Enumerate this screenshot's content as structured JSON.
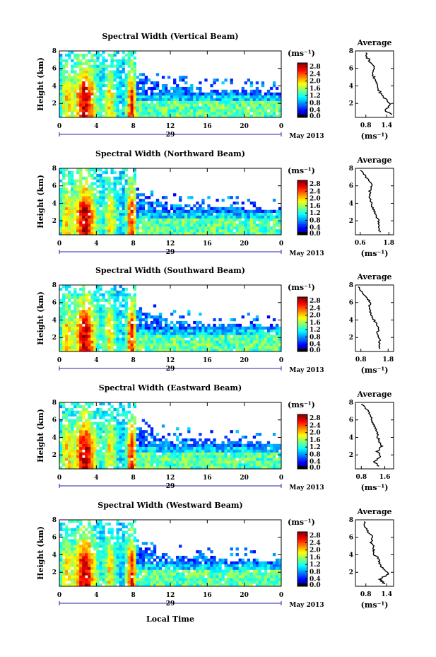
{
  "chart_data": [
    {
      "type": "heatmap",
      "title": "Spectral Width (Vertical Beam)",
      "ylabel": "Height (km)",
      "ylim": [
        0.4,
        8
      ],
      "yticks": [
        "2",
        "4",
        "6",
        "8"
      ],
      "xticks": [
        "0",
        "4",
        "8",
        "12",
        "16",
        "20",
        "0"
      ],
      "xlim": [
        0,
        24
      ],
      "date_day": "29",
      "date_label": "May 2013",
      "colorbar": {
        "label": "(ms⁻¹)",
        "ticks": [
          "0.0",
          "0.4",
          "0.8",
          "1.2",
          "1.6",
          "2.0",
          "2.4",
          "2.8"
        ],
        "range": [
          0,
          3.0
        ]
      },
      "average_profile": {
        "title": "Average",
        "xlabel": "(ms⁻¹)",
        "xticks": [
          "0.8",
          "1.4"
        ],
        "xlim": [
          0.5,
          1.6
        ],
        "height": [
          0.7,
          1.2,
          1.8,
          2.4,
          3.0,
          3.6,
          4.2,
          4.8,
          5.4,
          6.0,
          6.6,
          7.2,
          7.8
        ],
        "width": [
          1.55,
          1.35,
          1.5,
          1.4,
          1.25,
          1.15,
          1.1,
          1.05,
          1.0,
          1.05,
          0.95,
          0.85,
          0.8
        ]
      }
    },
    {
      "type": "heatmap",
      "title": "Spectral Width (Northward Beam)",
      "ylabel": "Height (km)",
      "ylim": [
        0.4,
        8
      ],
      "yticks": [
        "2",
        "4",
        "6",
        "8"
      ],
      "xticks": [
        "0",
        "4",
        "8",
        "12",
        "16",
        "20",
        "0"
      ],
      "xlim": [
        0,
        24
      ],
      "date_day": "29",
      "date_label": "May 2013",
      "colorbar": {
        "label": "(ms⁻¹)",
        "ticks": [
          "0.0",
          "0.4",
          "0.8",
          "1.2",
          "1.6",
          "2.0",
          "2.4",
          "2.8"
        ],
        "range": [
          0,
          3.0
        ]
      },
      "average_profile": {
        "title": "Average",
        "xlabel": "(ms⁻¹)",
        "xticks": [
          "0.6",
          "1.8"
        ],
        "xlim": [
          0.4,
          2.0
        ],
        "height": [
          0.7,
          1.2,
          1.8,
          2.4,
          3.0,
          3.6,
          4.2,
          4.8,
          5.4,
          6.0,
          6.6,
          7.2,
          7.8
        ],
        "width": [
          1.45,
          1.35,
          1.4,
          1.3,
          1.2,
          1.1,
          1.05,
          1.0,
          1.0,
          1.1,
          0.95,
          0.8,
          0.6
        ]
      }
    },
    {
      "type": "heatmap",
      "title": "Spectral Width (Southward Beam)",
      "ylabel": "Height (km)",
      "ylim": [
        0.4,
        8
      ],
      "yticks": [
        "2",
        "4",
        "6",
        "8"
      ],
      "xticks": [
        "0",
        "4",
        "8",
        "12",
        "16",
        "20",
        "0"
      ],
      "xlim": [
        0,
        24
      ],
      "date_day": "29",
      "date_label": "May 2013",
      "colorbar": {
        "label": "(ms⁻¹)",
        "ticks": [
          "0.0",
          "0.4",
          "0.8",
          "1.2",
          "1.6",
          "2.0",
          "2.4",
          "2.8"
        ],
        "range": [
          0,
          3.0
        ]
      },
      "average_profile": {
        "title": "Average",
        "xlabel": "(ms⁻¹)",
        "xticks": [
          "0.8",
          "1.8"
        ],
        "xlim": [
          0.6,
          2.0
        ],
        "height": [
          0.7,
          1.2,
          1.8,
          2.4,
          3.0,
          3.6,
          4.2,
          4.8,
          5.4,
          6.0,
          6.6,
          7.2,
          7.8
        ],
        "width": [
          1.5,
          1.45,
          1.5,
          1.4,
          1.45,
          1.35,
          1.25,
          1.15,
          1.1,
          1.15,
          1.0,
          0.85,
          0.7
        ]
      }
    },
    {
      "type": "heatmap",
      "title": "Spectral Width (Eastward Beam)",
      "ylabel": "Height (km)",
      "ylim": [
        0.4,
        8
      ],
      "yticks": [
        "2",
        "4",
        "6",
        "8"
      ],
      "xticks": [
        "0",
        "4",
        "8",
        "12",
        "16",
        "20",
        "0"
      ],
      "xlim": [
        0,
        24
      ],
      "date_day": "29",
      "date_label": "May 2013",
      "colorbar": {
        "label": "(ms⁻¹)",
        "ticks": [
          "0.0",
          "0.4",
          "0.8",
          "1.2",
          "1.6",
          "2.0",
          "2.4",
          "2.8"
        ],
        "range": [
          0,
          3.0
        ]
      },
      "average_profile": {
        "title": "Average",
        "xlabel": "(ms⁻¹)",
        "xticks": [
          "0.8",
          "1.6"
        ],
        "xlim": [
          0.6,
          1.9
        ],
        "height": [
          0.7,
          1.2,
          1.8,
          2.4,
          3.0,
          3.6,
          4.2,
          4.8,
          5.4,
          6.0,
          6.6,
          7.2,
          7.8
        ],
        "width": [
          1.4,
          1.25,
          1.45,
          1.35,
          1.5,
          1.4,
          1.35,
          1.3,
          1.25,
          1.15,
          1.1,
          1.0,
          0.8
        ]
      }
    },
    {
      "type": "heatmap",
      "title": "Spectral Width (Westward Beam)",
      "ylabel": "Height (km)",
      "ylim": [
        0.4,
        8
      ],
      "yticks": [
        "2",
        "4",
        "6",
        "8"
      ],
      "xticks": [
        "0",
        "4",
        "8",
        "12",
        "16",
        "20",
        "0"
      ],
      "xlim": [
        0,
        24
      ],
      "date_day": "29",
      "date_label": "May 2013",
      "colorbar": {
        "label": "(ms⁻¹)",
        "ticks": [
          "0.0",
          "0.4",
          "0.8",
          "1.2",
          "1.6",
          "2.0",
          "2.4",
          "2.8"
        ],
        "range": [
          0,
          3.0
        ]
      },
      "average_profile": {
        "title": "Average",
        "xlabel": "(ms⁻¹)",
        "xticks": [
          "0.8",
          "1.4"
        ],
        "xlim": [
          0.5,
          1.6
        ],
        "height": [
          0.7,
          1.2,
          1.8,
          2.4,
          3.0,
          3.6,
          4.2,
          4.8,
          5.4,
          6.0,
          6.6,
          7.2,
          7.8
        ],
        "width": [
          1.35,
          1.2,
          1.45,
          1.3,
          1.2,
          1.15,
          1.0,
          1.05,
          0.95,
          1.0,
          0.85,
          0.8,
          0.75
        ]
      }
    }
  ],
  "common": {
    "xlabel": "Local Time"
  }
}
